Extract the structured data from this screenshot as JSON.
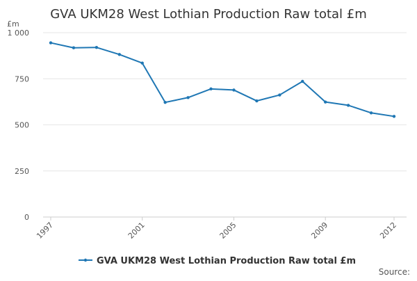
{
  "chart_data": {
    "type": "line",
    "title": "GVA UKM28 West Lothian Production Raw total £m",
    "ylabel": "£m",
    "xlabel": "",
    "ylim": [
      0,
      1000
    ],
    "yticks": [
      0,
      250,
      500,
      750,
      1000
    ],
    "ytick_labels": [
      "0",
      "250",
      "500",
      "750",
      "1 000"
    ],
    "xlim": [
      1997,
      2012
    ],
    "xticks": [
      "1997",
      "2001",
      "2005",
      "2009",
      "2012"
    ],
    "grid": true,
    "legend_position": "bottom",
    "x": [
      1997,
      1998,
      1999,
      2000,
      2001,
      2002,
      2003,
      2004,
      2005,
      2006,
      2007,
      2008,
      2009,
      2010,
      2011,
      2012
    ],
    "series": [
      {
        "name": "GVA UKM28 West Lothian Production Raw total £m",
        "color": "#1f77b4",
        "values": [
          945,
          918,
          920,
          882,
          835,
          622,
          648,
          695,
          689,
          630,
          662,
          736,
          624,
          606,
          565,
          546
        ]
      }
    ],
    "source_label": "Source:"
  }
}
